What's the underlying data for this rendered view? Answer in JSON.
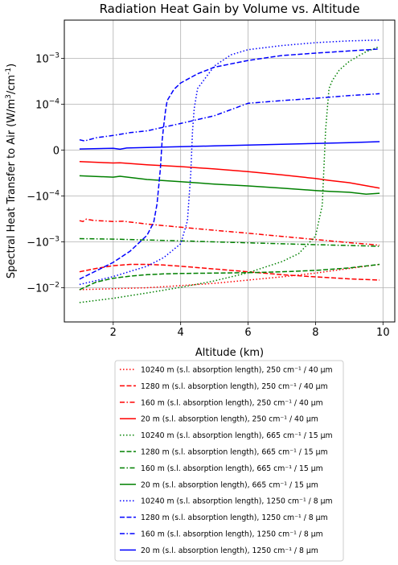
{
  "chart_data": {
    "type": "line",
    "title": "Radiation Heat Gain by Volume vs. Altitude",
    "xlabel": "Altitude (km)",
    "ylabel_parts": [
      "Spectral Heat Transfer to Air (W/m",
      "3",
      "/cm",
      "-1",
      ")"
    ],
    "xlim": [
      0.55,
      10.35
    ],
    "x_ticks": [
      2,
      4,
      6,
      8,
      10
    ],
    "x_tick_labels": [
      "2",
      "4",
      "6",
      "8",
      "10"
    ],
    "y_scale": "symlog",
    "y_scale_note": "linear region between -1e-4 and 1e-4, log beyond",
    "y_ticks": [
      -0.01,
      -0.001,
      -0.0001,
      0,
      0.0001,
      0.001
    ],
    "y_tick_labels": [
      {
        "base": "−10",
        "exp": "−2"
      },
      {
        "base": "−10",
        "exp": "−3"
      },
      {
        "base": "−10",
        "exp": "−4"
      },
      {
        "base": "0",
        "exp": ""
      },
      {
        "base": "10",
        "exp": "−4"
      },
      {
        "base": "10",
        "exp": "−3"
      }
    ],
    "grid": true,
    "legend_position": "below",
    "series": [
      {
        "name": "10240 m (s.l. absorption length), 250 cm⁻¹ / 40 μm",
        "color": "#ff0000",
        "dash": "dotted",
        "x": [
          1,
          2,
          3,
          4,
          5,
          6,
          7,
          8,
          9,
          9.9
        ],
        "y": [
          -0.011,
          -0.0105,
          -0.01,
          -0.009,
          -0.008,
          -0.0068,
          -0.0058,
          -0.0048,
          -0.0038,
          -0.0031
        ]
      },
      {
        "name": "1280 m (s.l. absorption length), 250 cm⁻¹ / 40 μm",
        "color": "#ff0000",
        "dash": "dashed",
        "x": [
          1,
          1.5,
          2,
          2.5,
          3,
          3.5,
          4,
          5,
          6,
          7,
          8,
          9,
          9.9
        ],
        "y": [
          -0.0045,
          -0.0038,
          -0.0033,
          -0.0031,
          -0.0031,
          -0.0032,
          -0.0034,
          -0.0039,
          -0.0045,
          -0.0052,
          -0.0058,
          -0.0064,
          -0.0068
        ]
      },
      {
        "name": "160 m (s.l. absorption length), 250 cm⁻¹ / 40 μm",
        "color": "#ff0000",
        "dash": "dashdot",
        "x": [
          1,
          1.1,
          1.2,
          1.4,
          2,
          2.3,
          3,
          4,
          5,
          6,
          7,
          8,
          9,
          9.9
        ],
        "y": [
          -0.000345,
          -0.00036,
          -0.00032,
          -0.00034,
          -0.00036,
          -0.000355,
          -0.00041,
          -0.00048,
          -0.00056,
          -0.00065,
          -0.00076,
          -0.00089,
          -0.00104,
          -0.00118
        ]
      },
      {
        "name": "20 m (s.l. absorption length), 250 cm⁻¹ / 40 μm",
        "color": "#ff0000",
        "dash": "solid",
        "x": [
          1,
          2,
          2.2,
          3,
          4,
          5,
          6,
          7,
          8,
          8.4,
          9,
          9.9
        ],
        "y": [
          -2.5e-05,
          -2.8e-05,
          -2.75e-05,
          -3.2e-05,
          -3.6e-05,
          -4.1e-05,
          -4.7e-05,
          -5.4e-05,
          -6.2e-05,
          -6.6e-05,
          -7.1e-05,
          -8.3e-05
        ]
      },
      {
        "name": "10240 m (s.l. absorption length), 665 cm⁻¹ / 15 μm",
        "color": "#008000",
        "dash": "dotted",
        "x": [
          1,
          2,
          3,
          4,
          5,
          6,
          7,
          7.5,
          8,
          8.2,
          8.3,
          8.4,
          8.5,
          8.7,
          9,
          9.5,
          9.9
        ],
        "y": [
          -0.021,
          -0.017,
          -0.013,
          -0.0098,
          -0.0071,
          -0.0047,
          -0.0027,
          -0.0018,
          -0.00075,
          -0.00016,
          4.5e-05,
          0.00022,
          0.00033,
          0.00055,
          0.00086,
          0.0014,
          0.0018
        ]
      },
      {
        "name": "1280 m (s.l. absorption length), 665 cm⁻¹ / 15 μm",
        "color": "#008000",
        "dash": "dashed",
        "x": [
          1,
          1.5,
          2,
          2.5,
          3,
          3.5,
          4,
          5,
          6,
          7,
          8,
          9,
          9.9
        ],
        "y": [
          -0.011,
          -0.0075,
          -0.0062,
          -0.0056,
          -0.0052,
          -0.005,
          -0.0049,
          -0.0048,
          -0.0047,
          -0.0045,
          -0.0042,
          -0.0037,
          -0.0031
        ]
      },
      {
        "name": "160 m (s.l. absorption length), 665 cm⁻¹ / 15 μm",
        "color": "#008000",
        "dash": "dashdot",
        "x": [
          1,
          2,
          3,
          4,
          5,
          6,
          7,
          8,
          9,
          9.9
        ],
        "y": [
          -0.00085,
          -0.00087,
          -0.00091,
          -0.00095,
          -0.001,
          -0.00105,
          -0.0011,
          -0.00115,
          -0.0012,
          -0.00125
        ]
      },
      {
        "name": "20 m (s.l. absorption length), 665 cm⁻¹ / 15 μm",
        "color": "#008000",
        "dash": "solid",
        "x": [
          1,
          2,
          2.2,
          3,
          4,
          5,
          6,
          7,
          8,
          8.4,
          9,
          9.5,
          9.9
        ],
        "y": [
          -5.6e-05,
          -5.9e-05,
          -5.7e-05,
          -6.4e-05,
          -6.9e-05,
          -7.4e-05,
          -7.8e-05,
          -8.3e-05,
          -8.8e-05,
          -9e-05,
          -9.2e-05,
          -9.6e-05,
          -9.4e-05
        ]
      },
      {
        "name": "10240 m (s.l. absorption length), 1250 cm⁻¹ / 8 μm",
        "color": "#0000ff",
        "dash": "dotted",
        "x": [
          1,
          2,
          3,
          3.5,
          4,
          4.2,
          4.3,
          4.35,
          4.4,
          4.5,
          5,
          5.5,
          6,
          7,
          8,
          9,
          9.9
        ],
        "y": [
          -0.0085,
          -0.0057,
          -0.0034,
          -0.0022,
          -0.0011,
          -0.00035,
          -5e-05,
          4e-05,
          9e-05,
          0.00022,
          0.00068,
          0.0012,
          0.00155,
          0.0019,
          0.0022,
          0.0024,
          0.0025
        ]
      },
      {
        "name": "1280 m (s.l. absorption length), 1250 cm⁻¹ / 8 μm",
        "color": "#0000ff",
        "dash": "dashed",
        "x": [
          1,
          2,
          2.5,
          3,
          3.2,
          3.3,
          3.4,
          3.45,
          3.5,
          3.55,
          3.6,
          3.8,
          4,
          4.5,
          5,
          6,
          7,
          8,
          9,
          9.9
        ],
        "y": [
          -0.0065,
          -0.0028,
          -0.0016,
          -0.00072,
          -0.00038,
          -0.00015,
          -4e-05,
          2e-05,
          5.5e-05,
          8.5e-05,
          0.00012,
          0.00021,
          0.00029,
          0.00046,
          0.00064,
          0.0009,
          0.00115,
          0.0013,
          0.00145,
          0.0016
        ]
      },
      {
        "name": "160 m (s.l. absorption length), 1250 cm⁻¹ / 8 μm",
        "color": "#0000ff",
        "dash": "dashdot",
        "x": [
          1,
          1.15,
          1.5,
          2,
          2.5,
          3,
          3.5,
          4,
          5,
          6,
          7,
          8,
          9,
          9.9
        ],
        "y": [
          2.25e-05,
          2e-05,
          2.7e-05,
          3.2e-05,
          3.8e-05,
          4.2e-05,
          5e-05,
          5.8e-05,
          7.5e-05,
          0.000105,
          0.00012,
          0.000135,
          0.000155,
          0.00017
        ]
      },
      {
        "name": "20 m (s.l. absorption length), 1250 cm⁻¹ / 8 μm",
        "color": "#0000ff",
        "dash": "solid",
        "x": [
          1,
          2,
          2.2,
          2.4,
          3,
          4,
          5,
          6,
          7,
          8,
          9,
          9.9
        ],
        "y": [
          2.5e-06,
          4e-06,
          2e-06,
          4.5e-06,
          5.8e-06,
          7.5e-06,
          9.2e-06,
          1.1e-05,
          1.28e-05,
          1.45e-05,
          1.63e-05,
          1.85e-05
        ]
      }
    ]
  }
}
